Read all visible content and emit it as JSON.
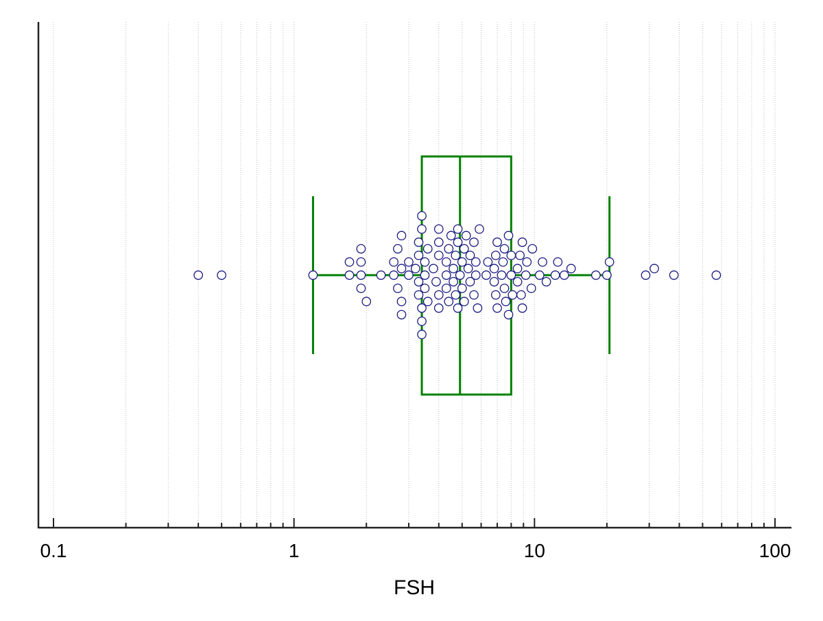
{
  "chart_data": {
    "type": "box",
    "title": "",
    "xlabel": "FSH",
    "ylabel": "",
    "x_scale": "log",
    "xlim": [
      0.09,
      120
    ],
    "grid": true,
    "x_ticks": [
      {
        "value": 0.1,
        "label": "0.1"
      },
      {
        "value": 1,
        "label": "1"
      },
      {
        "value": 10,
        "label": "10"
      },
      {
        "value": 100,
        "label": "100"
      }
    ],
    "box": {
      "whisker_low": 1.2,
      "q1": 3.4,
      "median": 4.9,
      "q3": 8.0,
      "whisker_high": 20.5
    },
    "points": [
      0.4,
      0.5,
      1.2,
      1.7,
      1.7,
      1.9,
      1.9,
      1.9,
      1.9,
      2.0,
      2.3,
      2.6,
      2.6,
      2.7,
      2.7,
      2.8,
      2.8,
      2.8,
      2.8,
      3.0,
      3.0,
      3.2,
      3.3,
      3.3,
      3.3,
      3.3,
      3.4,
      3.4,
      3.4,
      3.4,
      3.4,
      3.5,
      3.5,
      3.5,
      3.6,
      3.6,
      3.8,
      3.9,
      4.0,
      4.0,
      4.0,
      4.0,
      4.0,
      4.3,
      4.3,
      4.3,
      4.4,
      4.4,
      4.5,
      4.6,
      4.6,
      4.7,
      4.7,
      4.8,
      4.8,
      4.8,
      4.9,
      5.0,
      5.0,
      5.1,
      5.1,
      5.2,
      5.3,
      5.4,
      5.4,
      5.6,
      5.6,
      5.7,
      5.7,
      5.8,
      5.9,
      6.3,
      6.4,
      6.8,
      6.8,
      6.9,
      6.9,
      7.0,
      7.0,
      7.3,
      7.4,
      7.5,
      7.5,
      7.6,
      7.8,
      7.8,
      8.0,
      8.0,
      8.1,
      8.5,
      8.5,
      8.7,
      8.8,
      8.9,
      8.9,
      9.2,
      9.3,
      9.7,
      9.8,
      10.5,
      10.8,
      11.2,
      12.2,
      12.5,
      13.3,
      14.2,
      18.0,
      20.0,
      20.5,
      29.0,
      31.5,
      38.0,
      57.0
    ],
    "colors": {
      "box": "#008000",
      "point_stroke": "#1a1a80",
      "point_fill": "#ffffff",
      "grid": "#bbbbbb",
      "axis": "#222222"
    }
  }
}
